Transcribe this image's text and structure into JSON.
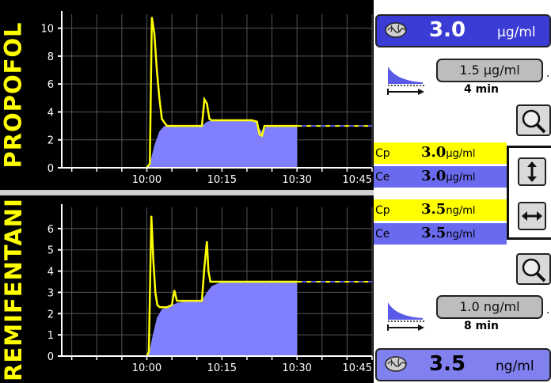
{
  "propofol": {
    "drug_label": "PROPOFOL",
    "target": {
      "value": "3.0",
      "unit": "µg/ml"
    },
    "infusion": {
      "rate": "1.5 µg/ml",
      "time": "4 min"
    },
    "cp": {
      "label": "Cp",
      "value": "3.0",
      "unit": "µg/ml"
    },
    "ce": {
      "label": "Ce",
      "value": "3.0",
      "unit": "µg/ml"
    }
  },
  "remifentanil": {
    "drug_label": "REMIFENTANI",
    "target": {
      "value": "3.5",
      "unit": "ng/ml"
    },
    "infusion": {
      "rate": "1.0 ng/ml",
      "time": "8 min"
    },
    "cp": {
      "label": "Cp",
      "value": "3.5",
      "unit": "ng/ml"
    },
    "ce": {
      "label": "Ce",
      "value": "3.5",
      "unit": "ng/ml"
    }
  },
  "colors": {
    "plot_bg": "#000000",
    "concentration_line": "#ffff00",
    "effect_fill": "#8080ff",
    "grid": "#555555",
    "axis": "#ffffff"
  },
  "icons": [
    "brain-icon",
    "decay-curve-icon",
    "magnifier-icon",
    "vertical-scale-icon",
    "horizontal-scale-icon"
  ],
  "chart_data": [
    {
      "type": "line",
      "series_note_free": true,
      "x_ticks": [
        "10:00",
        "10:15",
        "10:30",
        "10:45"
      ],
      "y_ticks": [
        "0",
        "2",
        "4",
        "6",
        "8",
        "10"
      ],
      "ylim": [
        0,
        11
      ],
      "xlim_min": [
        -17,
        45
      ],
      "now_min": 30,
      "series": [
        {
          "role": "plasma",
          "color": "#ffff00",
          "x": [
            0,
            0.6,
            1.0,
            1.5,
            2.0,
            2.5,
            3.0,
            4,
            5,
            6,
            7,
            8,
            9,
            10,
            11,
            11.5,
            12,
            12.5,
            13,
            15,
            18,
            20,
            21,
            22,
            22.5,
            23,
            23.5,
            24,
            26,
            28,
            30
          ],
          "y": [
            0,
            0.3,
            10.8,
            9.6,
            7.0,
            5.0,
            3.5,
            3.0,
            3.0,
            3.0,
            3.0,
            3.0,
            3.0,
            3.0,
            3.0,
            4.9,
            4.6,
            3.5,
            3.4,
            3.4,
            3.4,
            3.4,
            3.4,
            3.3,
            2.4,
            2.3,
            3.0,
            3.0,
            3.0,
            3.0,
            3.0
          ]
        },
        {
          "role": "effect",
          "color": "#8080ff",
          "x": [
            0,
            0.6,
            1.5,
            2.5,
            3.5,
            5,
            8,
            11,
            12,
            13,
            16,
            20,
            22,
            22.5,
            23,
            24,
            28,
            30
          ],
          "y": [
            0,
            0.3,
            1.6,
            2.6,
            3.0,
            3.0,
            3.0,
            3.0,
            3.3,
            3.4,
            3.4,
            3.4,
            3.3,
            2.8,
            2.6,
            3.0,
            3.0,
            3.0
          ]
        },
        {
          "role": "target-future",
          "x": [
            30,
            45
          ],
          "y": [
            3.0,
            3.0
          ]
        }
      ]
    },
    {
      "type": "line",
      "x_ticks": [
        "10:00",
        "10:15",
        "10:30",
        "10:45"
      ],
      "y_ticks": [
        "0",
        "1",
        "2",
        "3",
        "4",
        "5",
        "6"
      ],
      "ylim": [
        0,
        7
      ],
      "xlim_min": [
        -17,
        45
      ],
      "now_min": 30,
      "series": [
        {
          "role": "plasma",
          "color": "#ffff00",
          "x": [
            0,
            0.4,
            0.9,
            1.3,
            1.7,
            2.1,
            2.6,
            3,
            4,
            5,
            5.5,
            6,
            7,
            8,
            9,
            10,
            11,
            11.5,
            12,
            12.3,
            12.7,
            13,
            14,
            15,
            18,
            22,
            26,
            30
          ],
          "y": [
            0,
            0.2,
            6.6,
            4.5,
            3.0,
            2.4,
            2.3,
            2.3,
            2.3,
            2.4,
            3.1,
            2.6,
            2.6,
            2.6,
            2.6,
            2.6,
            2.6,
            4.2,
            5.4,
            4.0,
            3.5,
            3.5,
            3.5,
            3.5,
            3.5,
            3.5,
            3.5,
            3.5
          ]
        },
        {
          "role": "effect",
          "color": "#8080ff",
          "x": [
            0,
            0.5,
            1.2,
            2,
            3,
            4,
            5,
            6,
            8,
            11,
            12,
            13,
            15,
            20,
            25,
            30
          ],
          "y": [
            0,
            0.2,
            1.0,
            1.8,
            2.2,
            2.3,
            2.4,
            2.5,
            2.6,
            2.6,
            3.0,
            3.3,
            3.5,
            3.5,
            3.5,
            3.5
          ]
        },
        {
          "role": "target-future",
          "x": [
            30,
            45
          ],
          "y": [
            3.5,
            3.5
          ]
        }
      ]
    }
  ]
}
